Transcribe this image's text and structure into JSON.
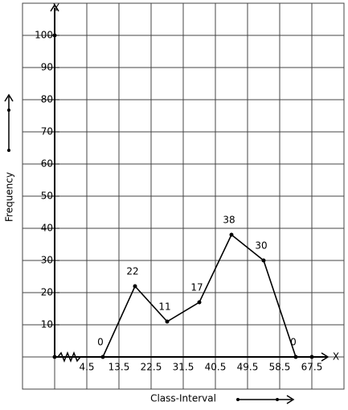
{
  "chart_data": {
    "type": "line",
    "x_label": "Class-Interval",
    "y_label": "Frequency",
    "x_axis_name": "X",
    "y_axis_name": "Y",
    "x": [
      9,
      18,
      27,
      36,
      45,
      54,
      63
    ],
    "series": [
      {
        "color": "#000000",
        "values": [
          0,
          22,
          11,
          17,
          38,
          30,
          0
        ]
      }
    ],
    "xlim": [
      -4.5,
      76.5
    ],
    "ylim": [
      0,
      110
    ],
    "xticks": [
      4.5,
      13.5,
      22.5,
      31.5,
      40.5,
      49.5,
      58.5,
      67.5
    ],
    "yticks": [
      10,
      20,
      30,
      40,
      50,
      60,
      70,
      80,
      90,
      100
    ],
    "grid": true
  }
}
